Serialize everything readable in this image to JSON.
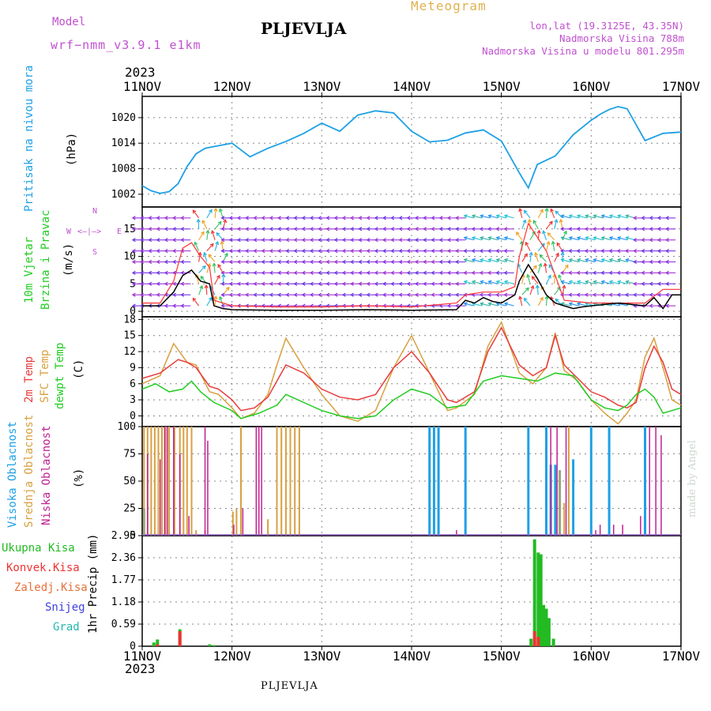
{
  "header": {
    "model_label": "Model",
    "model_name": "wrf−nmm_v3.9.1  e1km",
    "station": "PLJEVLJA",
    "product": "Meteogram",
    "lonlat": "lon,lat (19.3125E, 43.35N)",
    "altitude": "Nadmorska Visina 788m",
    "model_altitude": "Nadmorska Visina u modelu 801.295m",
    "year_top": "2023",
    "year_bottom": "2023",
    "footer_station": "PLJEVLJA",
    "credit": "made by Angel"
  },
  "colors": {
    "pressure": "#1ea0e6",
    "wind_speed": "#000000",
    "wind_gust": "#ff3030",
    "temp2m": "#e83c3c",
    "sfc_temp": "#d8a040",
    "dewpoint": "#22cc22",
    "cloud_high": "#1ea0e6",
    "cloud_mid": "#d8a040",
    "cloud_low": "#c02090",
    "precip_total": "#22bb22",
    "precip_conv": "#ee3333",
    "grid": "#888888",
    "label_purple": "#c050d0",
    "label_orange": "#e0b050"
  },
  "chart_data": [
    {
      "type": "line",
      "panel": "pressure",
      "ylabel_name": "Pritisak na nivou mora",
      "ylabel_unit": "(hPa)",
      "x_ticks": [
        "11NOV",
        "12NOV",
        "13NOV",
        "14NOV",
        "15NOV",
        "16NOV",
        "17NOV"
      ],
      "ylim": [
        999,
        1025
      ],
      "yticks": [
        "1002",
        "1008",
        "1014",
        "1020"
      ],
      "series": [
        {
          "x": [
            0,
            0.1,
            0.2,
            0.3,
            0.4,
            0.5,
            0.6,
            0.7,
            0.8,
            0.9,
            1.0,
            1.2,
            1.4,
            1.6,
            1.8,
            2.0,
            2.2,
            2.4,
            2.6,
            2.8,
            3.0,
            3.2,
            3.4,
            3.6,
            3.8,
            4.0,
            4.2,
            4.3,
            4.4,
            4.6,
            4.8,
            5.0,
            5.1,
            5.2,
            5.3,
            5.4,
            5.6,
            5.8,
            6.0
          ],
          "y": [
            1004,
            1002.8,
            1002.2,
            1002.6,
            1004.5,
            1008.5,
            1011.5,
            1012.8,
            1013.2,
            1013.6,
            1014.0,
            1010.8,
            1012.8,
            1014.4,
            1016.3,
            1018.7,
            1016.8,
            1020.6,
            1021.6,
            1021.1,
            1016.8,
            1014.3,
            1014.7,
            1016.4,
            1017.1,
            1014.5,
            1007.0,
            1003.5,
            1009.0,
            1011.0,
            1016.0,
            1019.4,
            1020.8,
            1021.9,
            1022.6,
            1022.1,
            1014.6,
            1016.3,
            1016.6
          ]
        }
      ]
    },
    {
      "type": "line",
      "panel": "wind",
      "ylabel_name": "10m Vjetar",
      "ylabel_name2": "Brzina i Pravac",
      "ylabel_unit": "(m/s)",
      "compass": "N",
      "compass_w": "W",
      "compass_e": "E",
      "compass_arrows": "<—|—>",
      "compass_s": "S",
      "ylim": [
        -1,
        19
      ],
      "yticks": [
        "0",
        "5",
        "10",
        "15"
      ],
      "series": [
        {
          "name": "speed",
          "x": [
            0,
            0.2,
            0.35,
            0.45,
            0.55,
            0.65,
            0.75,
            0.8,
            0.9,
            1.0,
            1.5,
            2.0,
            2.5,
            3.0,
            3.5,
            3.6,
            3.7,
            3.8,
            3.9,
            4.0,
            4.15,
            4.2,
            4.3,
            4.4,
            4.5,
            4.6,
            4.7,
            4.8,
            4.9,
            5.0,
            5.3,
            5.6,
            5.7,
            5.8,
            5.9,
            6.0
          ],
          "y": [
            1.0,
            1.0,
            3.5,
            6.5,
            7.5,
            5.5,
            5.0,
            1.0,
            0.5,
            0.3,
            0.2,
            0.2,
            0.3,
            0.2,
            0.3,
            2.0,
            1.5,
            2.5,
            1.8,
            1.5,
            3.0,
            5.5,
            8.5,
            6.0,
            3.0,
            1.5,
            1.0,
            0.5,
            0.8,
            1.0,
            1.5,
            1.0,
            2.5,
            0.5,
            3.0,
            3.0
          ]
        },
        {
          "name": "gust",
          "x": [
            0,
            0.2,
            0.35,
            0.45,
            0.55,
            0.65,
            0.75,
            0.8,
            1.0,
            1.5,
            2.0,
            2.5,
            3.0,
            3.5,
            3.6,
            3.8,
            4.0,
            4.15,
            4.2,
            4.3,
            4.5,
            4.7,
            5.0,
            5.6,
            5.8,
            6.0
          ],
          "y": [
            1.5,
            1.5,
            5.5,
            11.5,
            12.5,
            10.0,
            8.0,
            2.0,
            1.0,
            0.8,
            0.8,
            1.0,
            0.8,
            1.5,
            3.0,
            3.5,
            3.5,
            4.5,
            10.0,
            16.0,
            11.0,
            2.0,
            1.5,
            1.5,
            4.0,
            4.0
          ]
        }
      ]
    },
    {
      "type": "line",
      "panel": "temperature",
      "ylabel_name": "2m Temp",
      "ylabel_name2": "SFC Temp",
      "ylabel_name3": "dewpt Temp",
      "ylabel_unit": "(C)",
      "ylim": [
        -2,
        18.5
      ],
      "yticks": [
        "0",
        "3",
        "6",
        "9",
        "12",
        "15",
        "18"
      ],
      "series": [
        {
          "name": "2m Temp",
          "x": [
            0,
            0.2,
            0.4,
            0.5,
            0.6,
            0.75,
            0.85,
            1.0,
            1.1,
            1.25,
            1.4,
            1.5,
            1.6,
            1.8,
            2.0,
            2.2,
            2.4,
            2.6,
            2.8,
            3.0,
            3.2,
            3.4,
            3.5,
            3.7,
            3.85,
            4.0,
            4.2,
            4.35,
            4.5,
            4.6,
            4.7,
            4.85,
            5.0,
            5.15,
            5.3,
            5.4,
            5.5,
            5.6,
            5.7,
            5.8,
            5.9,
            6.0
          ],
          "y": [
            7.0,
            8.0,
            10.5,
            10.0,
            9.0,
            5.5,
            5.0,
            3.0,
            1.0,
            1.5,
            3.5,
            6.5,
            9.5,
            8.0,
            5.0,
            3.5,
            3.0,
            4.0,
            9.0,
            12.0,
            8.0,
            3.0,
            2.5,
            4.5,
            12.0,
            16.5,
            9.5,
            7.5,
            9.0,
            15.0,
            9.5,
            7.0,
            4.5,
            3.5,
            2.0,
            1.5,
            2.5,
            9.0,
            13.0,
            10.0,
            5.0,
            4.0
          ]
        },
        {
          "name": "SFC Temp",
          "x": [
            0,
            0.2,
            0.35,
            0.5,
            0.6,
            0.75,
            0.85,
            1.0,
            1.1,
            1.25,
            1.4,
            1.5,
            1.6,
            1.8,
            2.0,
            2.2,
            2.4,
            2.6,
            2.8,
            3.0,
            3.2,
            3.4,
            3.5,
            3.7,
            3.85,
            4.0,
            4.2,
            4.35,
            4.5,
            4.6,
            4.7,
            4.85,
            5.0,
            5.15,
            5.3,
            5.4,
            5.5,
            5.6,
            5.7,
            5.8,
            5.9,
            6.0
          ],
          "y": [
            6.0,
            7.5,
            13.5,
            10.0,
            9.5,
            4.5,
            4.0,
            1.5,
            -0.5,
            0.5,
            4.0,
            9.5,
            14.5,
            9.0,
            4.0,
            0.0,
            -1.0,
            1.0,
            9.0,
            15.0,
            8.0,
            1.0,
            1.5,
            4.0,
            13.0,
            17.5,
            8.0,
            6.0,
            9.0,
            15.5,
            8.5,
            6.5,
            3.0,
            0.5,
            -1.5,
            0.5,
            3.0,
            11.0,
            14.5,
            9.0,
            3.0,
            2.0
          ]
        },
        {
          "name": "dewpt Temp",
          "x": [
            0,
            0.15,
            0.3,
            0.45,
            0.55,
            0.65,
            0.8,
            1.0,
            1.1,
            1.3,
            1.5,
            1.6,
            1.8,
            2.0,
            2.2,
            2.4,
            2.6,
            2.8,
            3.0,
            3.2,
            3.4,
            3.6,
            3.8,
            4.0,
            4.2,
            4.4,
            4.6,
            4.8,
            5.0,
            5.15,
            5.3,
            5.4,
            5.5,
            5.6,
            5.7,
            5.8,
            5.9,
            6.0
          ],
          "y": [
            5.0,
            6.0,
            4.5,
            5.0,
            6.5,
            4.5,
            2.5,
            1.0,
            -0.5,
            0.5,
            2.0,
            4.0,
            2.5,
            1.0,
            0.0,
            -0.5,
            0.0,
            3.0,
            5.0,
            4.0,
            1.5,
            2.0,
            6.5,
            7.5,
            7.0,
            6.5,
            8.0,
            7.5,
            3.0,
            1.5,
            1.0,
            2.0,
            4.0,
            5.0,
            3.5,
            0.5,
            1.0,
            1.5
          ]
        }
      ]
    },
    {
      "type": "bar",
      "panel": "cloud",
      "ylabel_name": "Visoka Oblacnost",
      "ylabel_name2": "Srednja Oblacnost",
      "ylabel_name3": "Niska Oblacnost",
      "ylabel_unit": "(%)",
      "ylim": [
        0,
        100
      ],
      "yticks": [
        "0",
        "25",
        "50",
        "75",
        "100"
      ],
      "series": [
        {
          "name": "Visoka Oblacnost",
          "x": [
            0.02,
            0.05,
            0.4,
            3.2,
            3.25,
            3.3,
            3.6,
            4.3,
            4.5,
            4.55,
            4.6,
            4.65,
            4.8,
            5.0,
            5.2,
            5.6
          ],
          "values": [
            25,
            0,
            0,
            100,
            100,
            100,
            100,
            100,
            100,
            65,
            65,
            60,
            70,
            100,
            100,
            100
          ]
        },
        {
          "name": "Srednja Oblacnost",
          "x": [
            0.02,
            0.06,
            0.1,
            0.14,
            0.18,
            0.22,
            0.26,
            0.3,
            0.36,
            0.42,
            0.46,
            0.5,
            0.55,
            0.6,
            0.7,
            1.01,
            1.05,
            1.1,
            1.4,
            1.5,
            1.55,
            1.6,
            1.65,
            1.7,
            1.75,
            4.65,
            4.7,
            4.75
          ],
          "values": [
            100,
            100,
            100,
            100,
            100,
            100,
            100,
            100,
            100,
            100,
            100,
            100,
            100,
            5,
            5,
            22,
            25,
            100,
            15,
            100,
            100,
            100,
            100,
            100,
            100,
            60,
            30,
            100
          ]
        },
        {
          "name": "Niska Oblacnost",
          "x": [
            0.06,
            0.2,
            0.25,
            0.28,
            0.35,
            0.42,
            0.52,
            0.7,
            0.73,
            1.02,
            1.12,
            1.27,
            1.3,
            1.33,
            3.5,
            4.55,
            4.62,
            4.72,
            5.05,
            5.1,
            5.25,
            5.35,
            5.55,
            5.65,
            5.72,
            5.78
          ],
          "values": [
            75,
            70,
            100,
            100,
            100,
            75,
            18,
            100,
            87,
            10,
            25,
            100,
            100,
            100,
            5,
            100,
            100,
            100,
            5,
            10,
            10,
            10,
            18,
            100,
            100,
            92
          ]
        }
      ]
    },
    {
      "type": "bar",
      "panel": "precip",
      "ylabel_unit": "1hr Precip (mm)",
      "legend": [
        "Ukupna Kisa",
        "Konvek.Kisa",
        "Zaledj.Kisa",
        "Snijeg",
        "Grad"
      ],
      "legend_colors": [
        "#22bb22",
        "#ee3333",
        "#e8703a",
        "#4040e0",
        "#20b8b0"
      ],
      "ylim": [
        0,
        2.95
      ],
      "yticks": [
        "0",
        "0.59",
        "1.18",
        "1.77",
        "2.36",
        "2.95"
      ],
      "series": [
        {
          "name": "Ukupna Kisa",
          "x": [
            0.13,
            0.17,
            0.42,
            0.75,
            0.8,
            4.33,
            4.37,
            4.41,
            4.44,
            4.47,
            4.5,
            4.53,
            4.58
          ],
          "values": [
            0.1,
            0.18,
            0.45,
            0.05,
            0.03,
            0.2,
            2.85,
            2.5,
            2.45,
            1.1,
            1.0,
            0.75,
            0.2
          ]
        },
        {
          "name": "Konvek.Kisa",
          "x": [
            0.17,
            0.42,
            4.37,
            4.41
          ],
          "values": [
            0.05,
            0.4,
            0.4,
            0.25
          ]
        }
      ]
    }
  ]
}
